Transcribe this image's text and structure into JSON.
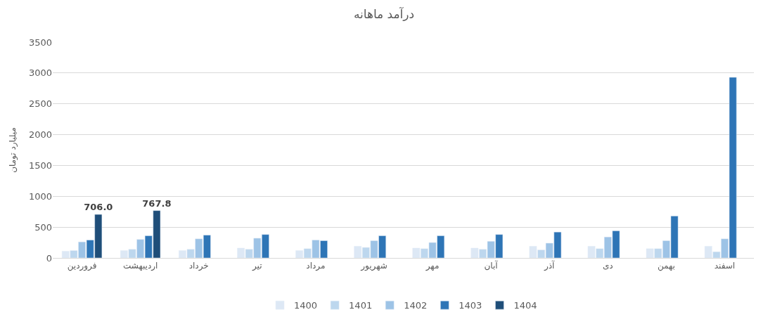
{
  "chart_data": {
    "type": "bar",
    "title": "درآمد ماهانه",
    "ylabel": "میلیارد تومان",
    "categories": [
      "فروردین",
      "اردیبهشت",
      "خرداد",
      "تیر",
      "مرداد",
      "شهریور",
      "مهر",
      "آبان",
      "آذر",
      "دی",
      "بهمن",
      "اسفند"
    ],
    "series": [
      {
        "name": "1400",
        "color": "#dde8f5",
        "values": [
          110,
          120,
          120,
          160,
          120,
          190,
          160,
          160,
          190,
          190,
          150,
          190
        ]
      },
      {
        "name": "1401",
        "color": "#bdd7ee",
        "values": [
          120,
          140,
          140,
          140,
          150,
          170,
          150,
          140,
          130,
          150,
          150,
          100
        ]
      },
      {
        "name": "1402",
        "color": "#9dc3e6",
        "values": [
          260,
          300,
          310,
          320,
          290,
          280,
          250,
          270,
          240,
          340,
          280,
          310
        ]
      },
      {
        "name": "1403",
        "color": "#2e75b6",
        "values": [
          290,
          360,
          370,
          380,
          280,
          360,
          360,
          380,
          420,
          440,
          680,
          2930
        ]
      },
      {
        "name": "1404",
        "color": "#1f4e79",
        "values": [
          706.0,
          767.8,
          null,
          null,
          null,
          null,
          null,
          null,
          null,
          null,
          null,
          null
        ],
        "value_labels": [
          "706.0",
          "767.8",
          null,
          null,
          null,
          null,
          null,
          null,
          null,
          null,
          null,
          null
        ]
      }
    ],
    "ylim": [
      0,
      3500
    ],
    "yticks": [
      0,
      500,
      1000,
      1500,
      2000,
      2500,
      3000,
      3500
    ],
    "grid": "y",
    "legend": "bottom"
  }
}
